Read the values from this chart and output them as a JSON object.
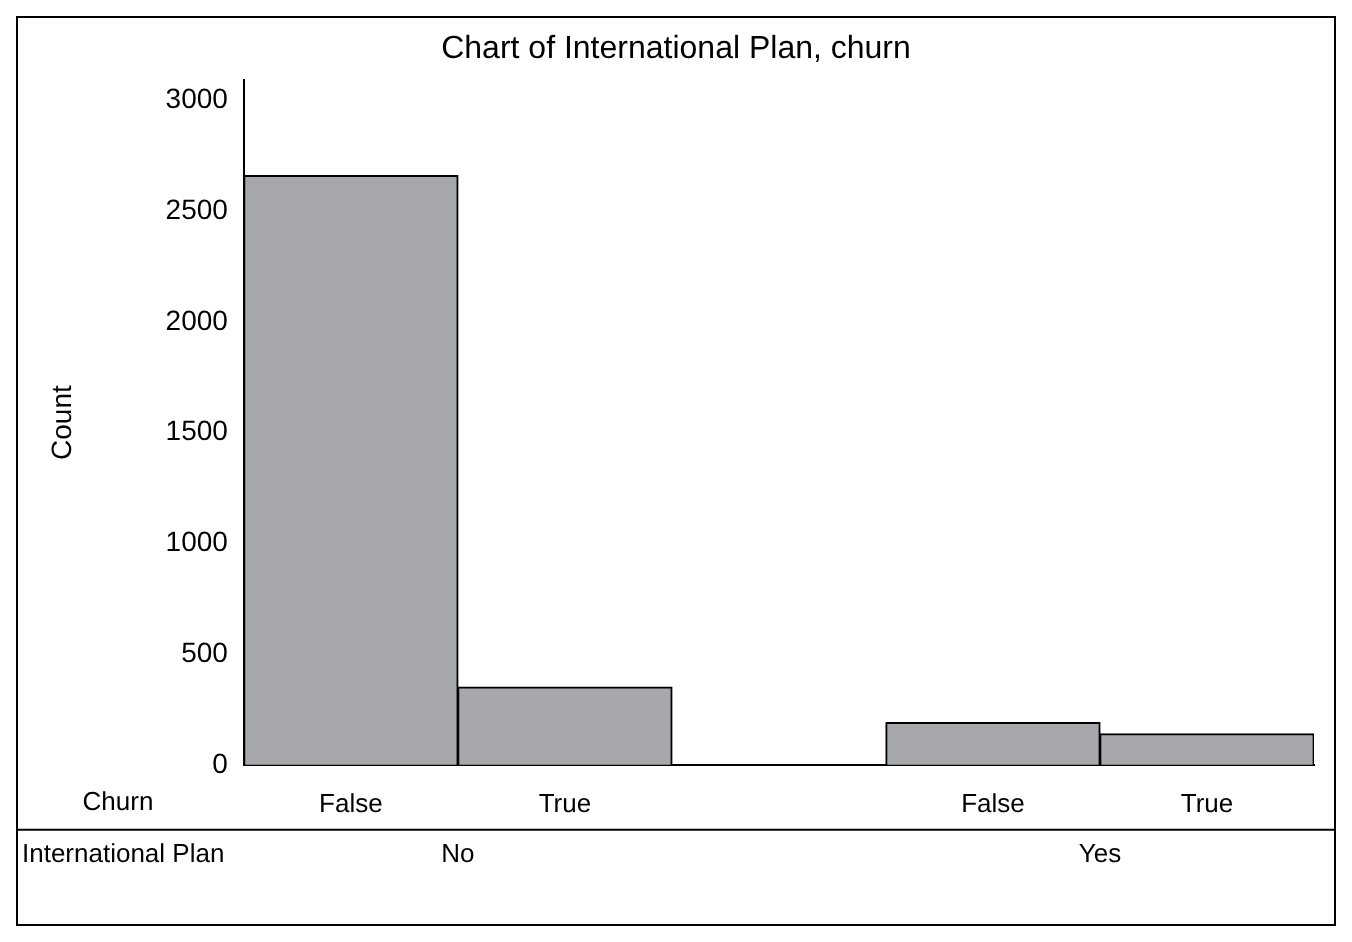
{
  "chart_data": {
    "type": "bar",
    "title": "Chart of International Plan, churn",
    "ylabel": "Count",
    "categories": [
      "False",
      "True",
      null,
      "False",
      "True"
    ],
    "values": [
      2660,
      350,
      null,
      190,
      140
    ],
    "color": "#a7a8ab",
    "ylim": [
      0,
      3090
    ],
    "yticks": [
      0,
      500,
      1000,
      1500,
      2000,
      2500,
      3000
    ],
    "grid": false,
    "legend": false,
    "annotations": [
      "Churn",
      "International Plan",
      "No",
      "Yes"
    ]
  }
}
